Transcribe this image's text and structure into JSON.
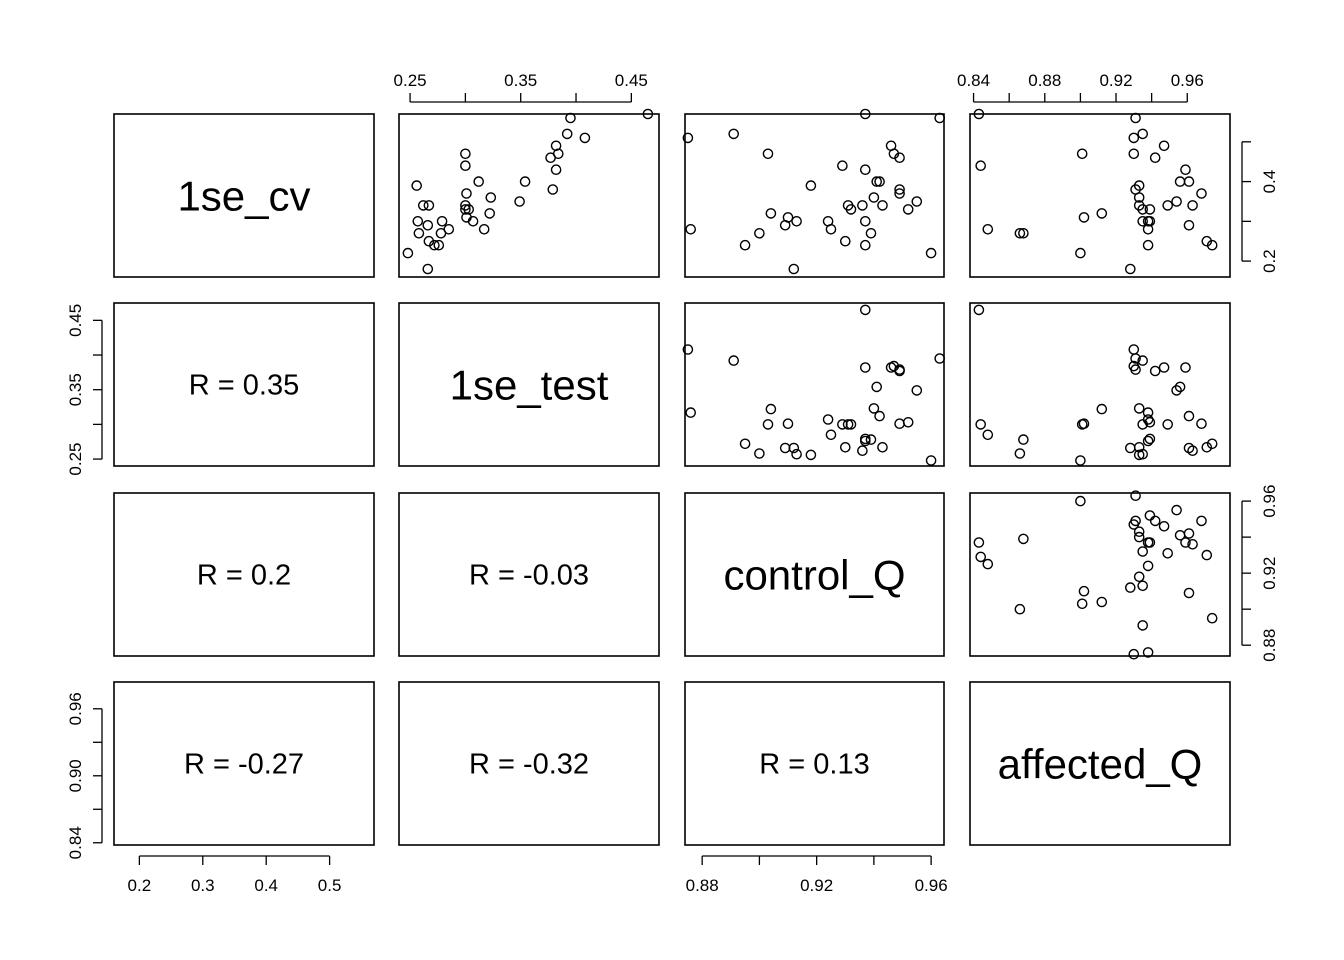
{
  "chart_data": {
    "type": "scatter",
    "variables": [
      "1se_cv",
      "1se_test",
      "control_Q",
      "affected_Q"
    ],
    "correlations": [
      {
        "row": "1se_test",
        "col": "1se_cv",
        "label": "R = 0.35"
      },
      {
        "row": "control_Q",
        "col": "1se_cv",
        "label": "R = 0.2"
      },
      {
        "row": "control_Q",
        "col": "1se_test",
        "label": "R = -0.03"
      },
      {
        "row": "affected_Q",
        "col": "1se_cv",
        "label": "R = -0.27"
      },
      {
        "row": "affected_Q",
        "col": "1se_test",
        "label": "R = -0.32"
      },
      {
        "row": "affected_Q",
        "col": "control_Q",
        "label": "R = 0.13"
      }
    ],
    "axes": {
      "top": [
        {
          "col": 1,
          "ticks": [
            0.25,
            0.3,
            0.35,
            0.4,
            0.45
          ],
          "labels": [
            "0.25",
            "0.35",
            "0.45"
          ],
          "label_values": [
            0.25,
            0.35,
            0.45
          ]
        },
        {
          "col": 3,
          "ticks": [
            0.84,
            0.86,
            0.88,
            0.9,
            0.92,
            0.94,
            0.96
          ],
          "labels": [
            "0.84",
            "0.88",
            "0.92",
            "0.96"
          ],
          "label_values": [
            0.84,
            0.88,
            0.92,
            0.96
          ]
        }
      ],
      "bottom": [
        {
          "col": 0,
          "ticks": [
            0.2,
            0.3,
            0.4,
            0.5
          ],
          "labels": [
            "0.2",
            "0.3",
            "0.4",
            "0.5"
          ],
          "label_values": [
            0.2,
            0.3,
            0.4,
            0.5
          ]
        },
        {
          "col": 2,
          "ticks": [
            0.88,
            0.9,
            0.92,
            0.94,
            0.96
          ],
          "labels": [
            "0.88",
            "0.92",
            "0.96"
          ],
          "label_values": [
            0.88,
            0.92,
            0.96
          ]
        }
      ],
      "left": [
        {
          "row": 1,
          "ticks": [
            0.25,
            0.3,
            0.35,
            0.4,
            0.45
          ],
          "labels": [
            "0.25",
            "0.35",
            "0.45"
          ],
          "label_values": [
            0.25,
            0.35,
            0.45
          ]
        },
        {
          "row": 3,
          "ticks": [
            0.84,
            0.87,
            0.9,
            0.93,
            0.96
          ],
          "labels": [
            "0.84",
            "0.90",
            "0.96"
          ],
          "label_values": [
            0.84,
            0.9,
            0.96
          ]
        }
      ],
      "right": [
        {
          "row": 0,
          "ticks": [
            0.2,
            0.3,
            0.4,
            0.5
          ],
          "labels": [
            "0.2",
            "0.4"
          ],
          "label_values": [
            0.2,
            0.4
          ]
        },
        {
          "row": 2,
          "ticks": [
            0.88,
            0.9,
            0.92,
            0.94,
            0.96
          ],
          "labels": [
            "0.88",
            "0.92",
            "0.96"
          ],
          "label_values": [
            0.88,
            0.92,
            0.96
          ]
        }
      ]
    },
    "ranges": {
      "1se_cv": [
        0.16,
        0.57
      ],
      "1se_test": [
        0.24,
        0.475
      ],
      "control_Q": [
        0.874,
        0.9645
      ],
      "affected_Q": [
        0.838,
        0.984
      ]
    },
    "points": [
      {
        "cv": 0.57,
        "test": 0.465,
        "cq": 0.937,
        "aq": 0.843
      },
      {
        "cv": 0.56,
        "test": 0.395,
        "cq": 0.963,
        "aq": 0.931
      },
      {
        "cv": 0.52,
        "test": 0.392,
        "cq": 0.891,
        "aq": 0.935
      },
      {
        "cv": 0.51,
        "test": 0.408,
        "cq": 0.875,
        "aq": 0.93
      },
      {
        "cv": 0.49,
        "test": 0.382,
        "cq": 0.946,
        "aq": 0.947
      },
      {
        "cv": 0.47,
        "test": 0.384,
        "cq": 0.947,
        "aq": 0.93
      },
      {
        "cv": 0.47,
        "test": 0.3,
        "cq": 0.903,
        "aq": 0.901
      },
      {
        "cv": 0.46,
        "test": 0.377,
        "cq": 0.949,
        "aq": 0.942
      },
      {
        "cv": 0.44,
        "test": 0.3,
        "cq": 0.929,
        "aq": 0.844
      },
      {
        "cv": 0.43,
        "test": 0.382,
        "cq": 0.937,
        "aq": 0.959
      },
      {
        "cv": 0.4,
        "test": 0.312,
        "cq": 0.942,
        "aq": 0.961
      },
      {
        "cv": 0.4,
        "test": 0.354,
        "cq": 0.941,
        "aq": 0.956
      },
      {
        "cv": 0.39,
        "test": 0.256,
        "cq": 0.918,
        "aq": 0.933
      },
      {
        "cv": 0.38,
        "test": 0.379,
        "cq": 0.949,
        "aq": 0.931
      },
      {
        "cv": 0.37,
        "test": 0.301,
        "cq": 0.949,
        "aq": 0.968
      },
      {
        "cv": 0.36,
        "test": 0.323,
        "cq": 0.94,
        "aq": 0.933
      },
      {
        "cv": 0.35,
        "test": 0.349,
        "cq": 0.955,
        "aq": 0.954
      },
      {
        "cv": 0.34,
        "test": 0.267,
        "cq": 0.943,
        "aq": 0.933
      },
      {
        "cv": 0.34,
        "test": 0.262,
        "cq": 0.936,
        "aq": 0.963
      },
      {
        "cv": 0.34,
        "test": 0.3,
        "cq": 0.931,
        "aq": 0.949
      },
      {
        "cv": 0.33,
        "test": 0.303,
        "cq": 0.952,
        "aq": 0.939
      },
      {
        "cv": 0.33,
        "test": 0.3,
        "cq": 0.932,
        "aq": 0.935
      },
      {
        "cv": 0.32,
        "test": 0.322,
        "cq": 0.904,
        "aq": 0.912
      },
      {
        "cv": 0.31,
        "test": 0.301,
        "cq": 0.91,
        "aq": 0.902
      },
      {
        "cv": 0.3,
        "test": 0.307,
        "cq": 0.924,
        "aq": 0.938
      },
      {
        "cv": 0.3,
        "test": 0.257,
        "cq": 0.913,
        "aq": 0.935
      },
      {
        "cv": 0.3,
        "test": 0.279,
        "cq": 0.937,
        "aq": 0.939
      },
      {
        "cv": 0.29,
        "test": 0.266,
        "cq": 0.909,
        "aq": 0.961
      },
      {
        "cv": 0.28,
        "test": 0.317,
        "cq": 0.876,
        "aq": 0.938
      },
      {
        "cv": 0.28,
        "test": 0.285,
        "cq": 0.925,
        "aq": 0.848
      },
      {
        "cv": 0.27,
        "test": 0.258,
        "cq": 0.9,
        "aq": 0.866
      },
      {
        "cv": 0.27,
        "test": 0.278,
        "cq": 0.939,
        "aq": 0.868
      },
      {
        "cv": 0.25,
        "test": 0.267,
        "cq": 0.93,
        "aq": 0.971
      },
      {
        "cv": 0.24,
        "test": 0.272,
        "cq": 0.895,
        "aq": 0.974
      },
      {
        "cv": 0.24,
        "test": 0.276,
        "cq": 0.937,
        "aq": 0.938
      },
      {
        "cv": 0.22,
        "test": 0.248,
        "cq": 0.96,
        "aq": 0.9
      },
      {
        "cv": 0.18,
        "test": 0.266,
        "cq": 0.912,
        "aq": 0.928
      }
    ]
  }
}
